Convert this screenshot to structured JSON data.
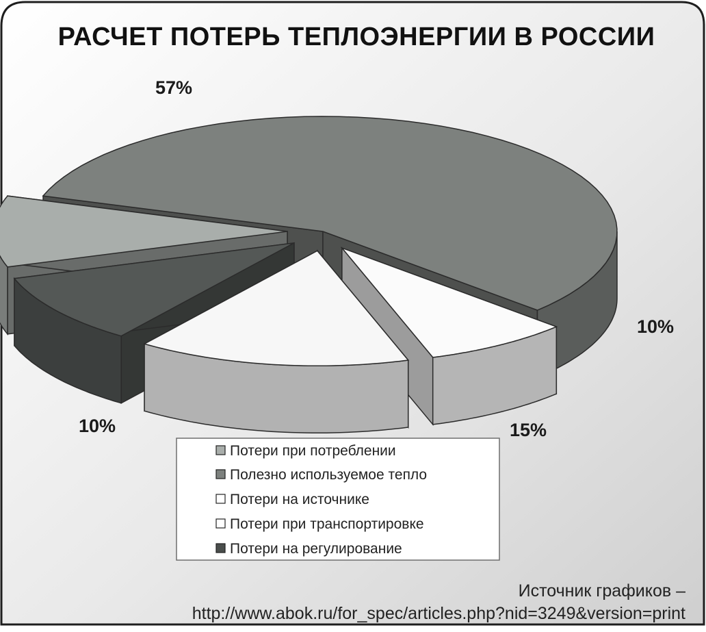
{
  "title": "РАСЧЕТ ПОТЕРЬ ТЕПЛОЭНЕРГИИ В РОССИИ",
  "chart_data": {
    "type": "pie",
    "title": "РАСЧЕТ ПОТЕРЬ ТЕПЛОЭНЕРГИИ В РОССИИ",
    "style": "3d-exploded",
    "legend_position": "bottom-center",
    "slices": [
      {
        "name": "Потери при потреблении",
        "value": 10,
        "label": "10%",
        "color": "#a9aeab"
      },
      {
        "name": "Полезно используемое тепло",
        "value": 57,
        "label": "57%",
        "color": "#7d817e"
      },
      {
        "name": "Потери на источнике",
        "value": 8,
        "label": "",
        "color": "#fbfbfb"
      },
      {
        "name": "Потери при транспортировке",
        "value": 15,
        "label": "15%",
        "color": "#f7f7f7"
      },
      {
        "name": "Потери на регулирование",
        "value": 10,
        "label": "10%",
        "color": "#545856"
      }
    ]
  },
  "source": {
    "line1": "Источник графиков –",
    "line2": "http://www.abok.ru/for_spec/articles.php?nid=3249&version=print"
  }
}
